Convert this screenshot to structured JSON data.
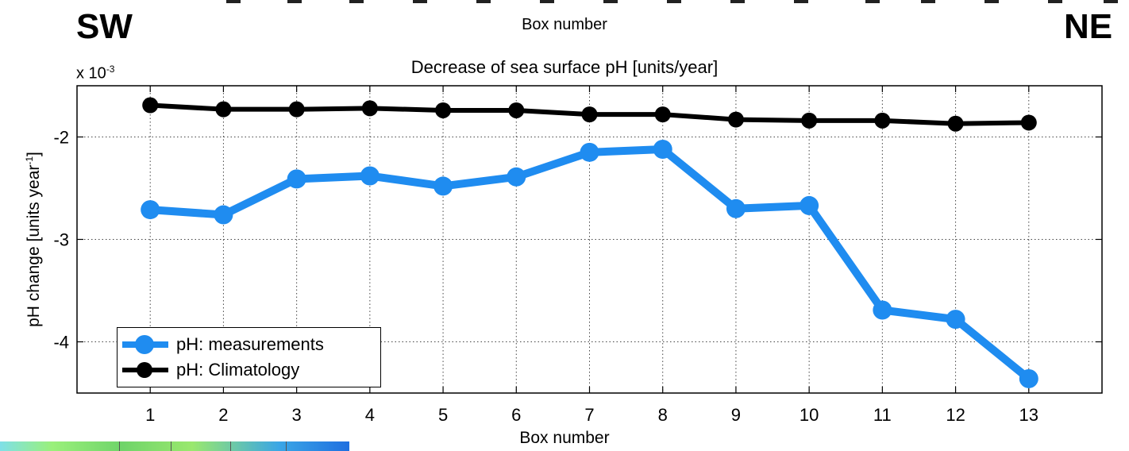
{
  "header": {
    "left_direction": "SW",
    "right_direction": "NE",
    "top_axis_label": "Box number"
  },
  "chart_data": {
    "type": "line",
    "title": "Decrease of sea surface pH [units/year]",
    "xlabel": "Box number",
    "ylabel_main": "pH change [units year",
    "ylabel_sup": "-1",
    "ylabel_end": "]",
    "y_scale_prefix": "x 10",
    "y_scale_exponent": "-3",
    "x": [
      1,
      2,
      3,
      4,
      5,
      6,
      7,
      8,
      9,
      10,
      11,
      12,
      13
    ],
    "xlim": [
      0,
      14
    ],
    "ylim": [
      -4.5,
      -1.5
    ],
    "yticks": [
      -4,
      -3,
      -2
    ],
    "grid": true,
    "legend_position": "lower-left",
    "series": [
      {
        "name": "pH: measurements",
        "color": "#1f8cf0",
        "values": [
          -2.71,
          -2.76,
          -2.41,
          -2.38,
          -2.48,
          -2.39,
          -2.15,
          -2.12,
          -2.7,
          -2.67,
          -3.69,
          -3.78,
          -4.36
        ]
      },
      {
        "name": "pH: Climatology",
        "color": "#000000",
        "values": [
          -1.69,
          -1.73,
          -1.73,
          -1.72,
          -1.74,
          -1.74,
          -1.78,
          -1.78,
          -1.83,
          -1.84,
          -1.84,
          -1.87,
          -1.86
        ]
      }
    ]
  }
}
